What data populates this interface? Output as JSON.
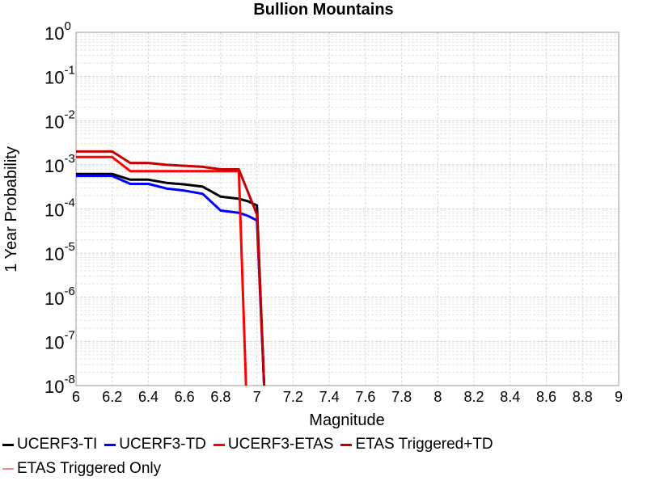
{
  "chart_data": {
    "type": "line",
    "title": "Bullion Mountains",
    "xlabel": "Magnitude",
    "ylabel": "1 Year Probability",
    "x_scale": "linear",
    "y_scale": "log",
    "xlim": [
      6,
      9
    ],
    "ylim": [
      1e-08,
      1
    ],
    "x_ticks": [
      "6",
      "6.2",
      "6.4",
      "6.6",
      "6.8",
      "7",
      "7.2",
      "7.4",
      "7.6",
      "7.8",
      "8",
      "8.2",
      "8.4",
      "8.6",
      "8.8",
      "9"
    ],
    "y_tick_base": "10",
    "y_tick_exponents": [
      "0",
      "-1",
      "-2",
      "-3",
      "-4",
      "-5",
      "-6",
      "-7",
      "-8"
    ],
    "grid": true,
    "legend_position": "bottom",
    "series": [
      {
        "name": "UCERF3-TI",
        "color": "#000000",
        "x": [
          6.0,
          6.1,
          6.2,
          6.3,
          6.4,
          6.5,
          6.6,
          6.7,
          6.8,
          6.9,
          6.95,
          7.0,
          7.04
        ],
        "y": [
          0.00062,
          0.00062,
          0.00062,
          0.00046,
          0.00046,
          0.00039,
          0.00036,
          0.00032,
          0.00019,
          0.00017,
          0.00015,
          0.00012,
          1e-08
        ]
      },
      {
        "name": "UCERF3-TD",
        "color": "#0000ff",
        "x": [
          6.0,
          6.1,
          6.2,
          6.3,
          6.4,
          6.5,
          6.6,
          6.7,
          6.8,
          6.9,
          6.95,
          7.0,
          7.04
        ],
        "y": [
          0.00056,
          0.00056,
          0.00056,
          0.00037,
          0.00037,
          0.00029,
          0.00026,
          0.00022,
          9.2e-05,
          8.2e-05,
          7e-05,
          5.5e-05,
          1e-08
        ]
      },
      {
        "name": "UCERF3-ETAS",
        "color": "#ff0000",
        "x": [
          6.0,
          6.1,
          6.2,
          6.3,
          6.4,
          6.5,
          6.6,
          6.7,
          6.8,
          6.9,
          6.94
        ],
        "y": [
          0.0015,
          0.0015,
          0.0015,
          0.00072,
          0.00072,
          0.00072,
          0.00072,
          0.00072,
          0.00072,
          0.00072,
          1e-08
        ]
      },
      {
        "name": "ETAS Triggered+TD",
        "color": "#c40000",
        "x": [
          6.0,
          6.1,
          6.2,
          6.3,
          6.4,
          6.5,
          6.6,
          6.7,
          6.8,
          6.9,
          7.0,
          7.04
        ],
        "y": [
          0.002,
          0.002,
          0.002,
          0.0011,
          0.0011,
          0.001,
          0.00095,
          0.0009,
          0.00079,
          0.00079,
          7.5e-05,
          1e-08
        ]
      },
      {
        "name": "ETAS Triggered Only",
        "color": "#ff8080",
        "x": [],
        "y": []
      }
    ]
  }
}
